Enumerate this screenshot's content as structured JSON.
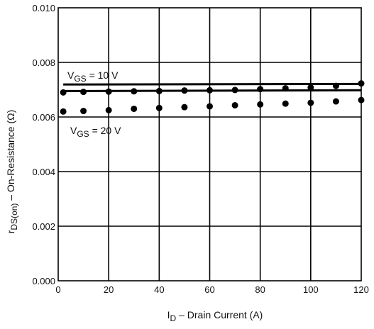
{
  "chart_data": {
    "type": "line",
    "x_axis": {
      "label_main": "I",
      "label_sub": "D",
      "label_rest": " – Drain Current (A)",
      "min": 0,
      "max": 120,
      "ticks": [
        "0",
        "20",
        "40",
        "60",
        "80",
        "100",
        "120"
      ]
    },
    "y_axis": {
      "label_main": "r",
      "label_sub": "DS(on)",
      "label_rest": " – On-Resistance (Ω)",
      "min": 0,
      "max": 0.01,
      "ticks": [
        "0.000",
        "0.002",
        "0.004",
        "0.006",
        "0.008",
        "0.010"
      ]
    },
    "grid": true,
    "legend": "none",
    "annotations": [
      {
        "main": "V",
        "sub": "GS",
        "rest": " = 10 V"
      },
      {
        "main": "V",
        "sub": "GS",
        "rest": " = 20 V"
      }
    ],
    "series": [
      {
        "style": "line",
        "color": "#000000",
        "x": [
          2,
          120
        ],
        "y": [
          0.00719,
          0.00721
        ]
      },
      {
        "style": "line",
        "color": "#000000",
        "x": [
          2,
          120
        ],
        "y": [
          0.00695,
          0.00698
        ]
      },
      {
        "style": "markers",
        "color": "#000000",
        "x": [
          2,
          10,
          20,
          30,
          40,
          50,
          60,
          70,
          80,
          90,
          100,
          110,
          120
        ],
        "y": [
          0.0069,
          0.00692,
          0.00693,
          0.00694,
          0.00695,
          0.00697,
          0.00698,
          0.00699,
          0.00702,
          0.00705,
          0.00708,
          0.00714,
          0.00723
        ]
      },
      {
        "style": "markers",
        "color": "#000000",
        "x": [
          2,
          10,
          20,
          30,
          40,
          50,
          60,
          70,
          80,
          90,
          100,
          110,
          120
        ],
        "y": [
          0.0062,
          0.00622,
          0.00625,
          0.0063,
          0.00633,
          0.00636,
          0.00639,
          0.00643,
          0.00646,
          0.00649,
          0.00652,
          0.00657,
          0.00662
        ]
      }
    ]
  }
}
